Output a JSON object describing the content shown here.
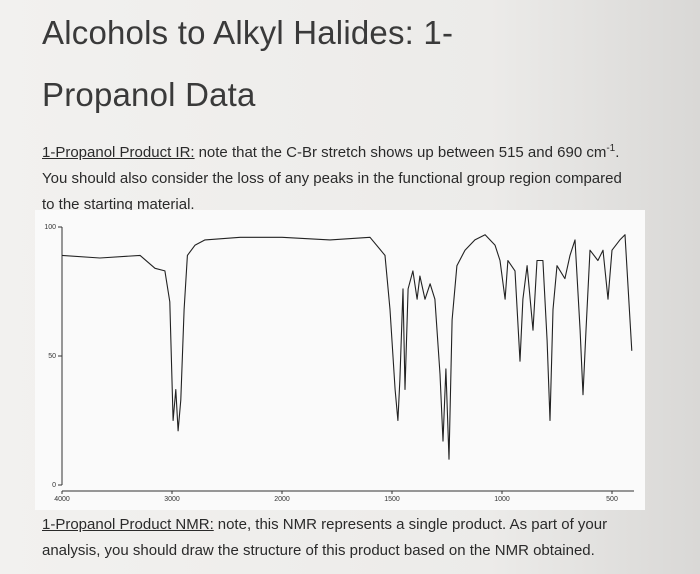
{
  "title_lines": [
    "Alcohols to Alkyl Halides: 1-",
    "Propanol Data"
  ],
  "ir_paragraph": {
    "label": "1-Propanol Product IR:",
    "text_before": "note that the C-Br stretch shows up between 515 and 690 cm",
    "superscript": "-1",
    "text_after": ". You should also consider the loss of any peaks in the functional group region compared to the starting material."
  },
  "chart_data": {
    "type": "line",
    "xlim": [
      4000,
      400
    ],
    "ylim": [
      0,
      100
    ],
    "xticks": [
      4000,
      3000,
      2000,
      1500,
      1000,
      500
    ],
    "yticks": [
      0,
      50,
      100
    ],
    "series": [
      {
        "color": "#222222",
        "x": [
          4000,
          3655,
          3290,
          3155,
          3065,
          3020,
          2990,
          2965,
          2945,
          2920,
          2890,
          2860,
          2790,
          2700,
          2380,
          2000,
          1782,
          1600,
          1532,
          1509,
          1486,
          1473,
          1464,
          1450,
          1441,
          1427,
          1405,
          1386,
          1373,
          1350,
          1327,
          1305,
          1282,
          1268,
          1255,
          1241,
          1227,
          1205,
          1168,
          1123,
          1077,
          1032,
          1009,
          986,
          973,
          941,
          918,
          905,
          886,
          859,
          841,
          814,
          795,
          782,
          768,
          750,
          714,
          691,
          668,
          645,
          632,
          618,
          600,
          564,
          541,
          518,
          500,
          464,
          441,
          410
        ],
        "values": [
          89,
          88,
          89,
          84,
          83,
          71,
          25,
          37,
          21,
          33,
          68,
          89,
          93,
          95,
          96,
          96,
          95,
          96,
          89,
          68,
          37,
          25,
          41,
          76,
          37,
          76,
          83,
          72,
          81,
          72,
          78,
          72,
          43,
          17,
          45,
          10,
          64,
          85,
          91,
          95,
          97,
          93,
          87,
          72,
          87,
          83,
          48,
          72,
          85,
          60,
          87,
          87,
          56,
          25,
          68,
          85,
          80,
          89,
          95,
          60,
          35,
          60,
          91,
          87,
          91,
          72,
          91,
          95,
          97,
          52
        ]
      }
    ]
  },
  "nmr_paragraph": {
    "label": "1-Propanol Product NMR:",
    "text": "note, this NMR represents a single product. As part of your analysis, you should draw the structure of this product based on the NMR obtained."
  }
}
